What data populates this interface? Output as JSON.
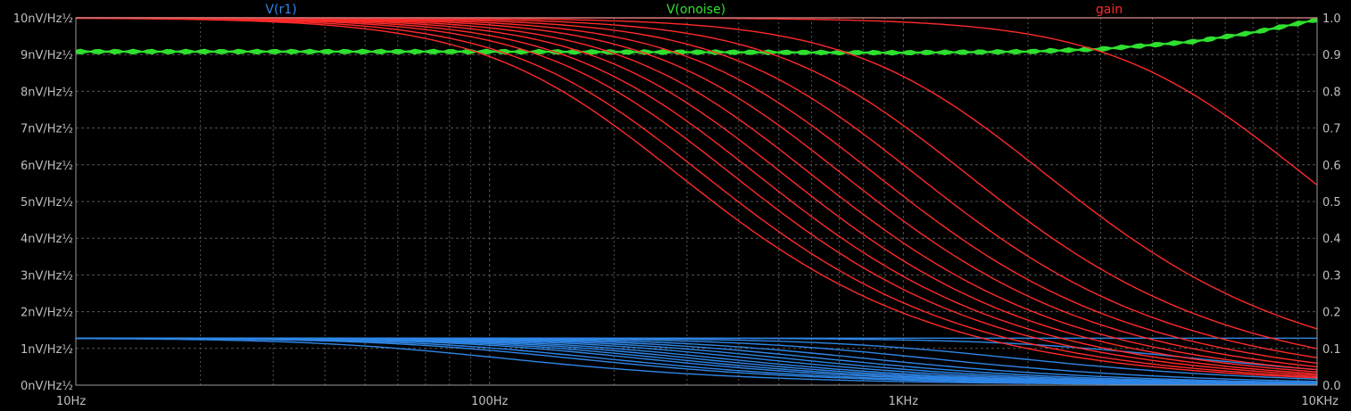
{
  "chart_data": {
    "type": "line",
    "x_scale": "log",
    "xlim": [
      10,
      10000
    ],
    "x_ticks": [
      {
        "value": 10,
        "label": "10Hz"
      },
      {
        "value": 100,
        "label": "100Hz"
      },
      {
        "value": 1000,
        "label": "1KHz"
      },
      {
        "value": 10000,
        "label": "10KHz"
      }
    ],
    "y_left": {
      "lim": [
        0,
        10
      ],
      "tick_values": [
        0,
        1,
        2,
        3,
        4,
        5,
        6,
        7,
        8,
        9,
        10
      ],
      "tick_labels": [
        "0nV/Hz½",
        "1nV/Hz½",
        "2nV/Hz½",
        "3nV/Hz½",
        "4nV/Hz½",
        "5nV/Hz½",
        "6nV/Hz½",
        "7nV/Hz½",
        "8nV/Hz½",
        "9nV/Hz½",
        "10nV/Hz½"
      ]
    },
    "y_right": {
      "lim": [
        0,
        1
      ],
      "tick_values": [
        0,
        0.1,
        0.2,
        0.3,
        0.4,
        0.5,
        0.6,
        0.7,
        0.8,
        0.9,
        1.0
      ],
      "tick_labels": [
        "0.0",
        "0.1",
        "0.2",
        "0.3",
        "0.4",
        "0.5",
        "0.6",
        "0.7",
        "0.8",
        "0.9",
        "1.0"
      ]
    },
    "grid": true,
    "colors": {
      "background": "#000000",
      "axes": "#9a9a9a",
      "grid": "#555555",
      "tick_text": "#bfbfbf",
      "r1": "#2f86e6",
      "onoise": "#2fe02f",
      "gain": "#ff2a2a"
    },
    "series": [
      {
        "name": "V(r1)",
        "axis": "left",
        "color": "#2f86e6",
        "kind": "lowpass_family",
        "dc_level": 1.28,
        "corner_hz": [
          75,
          110,
          130,
          160,
          185,
          215,
          250,
          300,
          360,
          440,
          560,
          800,
          1300,
          3500,
          1000000
        ]
      },
      {
        "name": "V(onoise)",
        "axis": "left",
        "color": "#2fe02f",
        "kind": "noise_family",
        "floor_nv": 9.0,
        "x": [
          10,
          100,
          200,
          500,
          1000,
          2000,
          3000,
          5000,
          7000,
          10000
        ],
        "y": [
          9.08,
          9.08,
          9.07,
          9.06,
          9.05,
          9.08,
          9.15,
          9.35,
          9.6,
          9.95
        ]
      },
      {
        "name": "gain",
        "axis": "right",
        "color": "#ff2a2a",
        "kind": "lowpass_family",
        "dc_level": 1.0,
        "corner_hz": [
          200,
          230,
          270,
          310,
          360,
          420,
          500,
          600,
          750,
          1000,
          1550,
          6500,
          1000000
        ]
      }
    ]
  }
}
